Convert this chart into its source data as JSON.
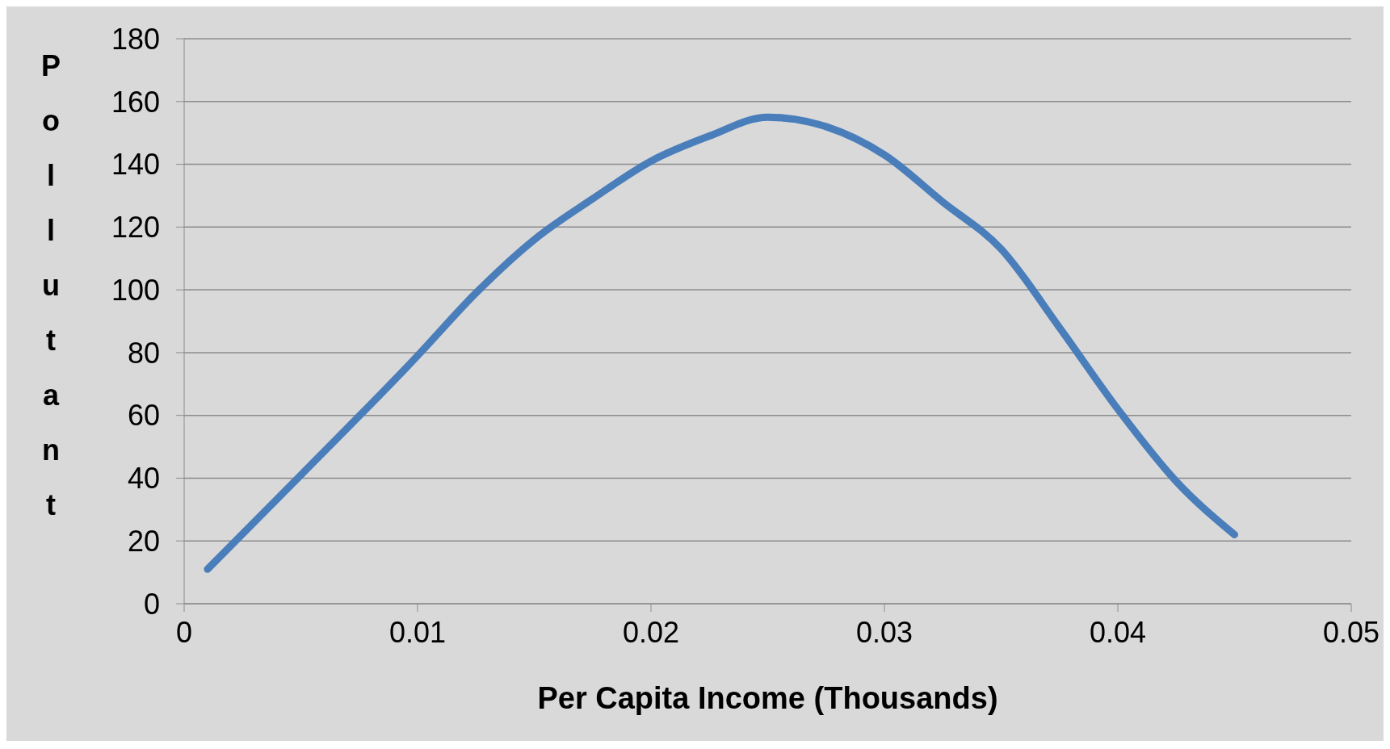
{
  "chart_data": {
    "type": "line",
    "xlabel": "Per Capita Income (Thousands)",
    "ylabel": "Pollutant",
    "series": [
      {
        "color": "#4a7ebb",
        "x": [
          0.001,
          0.005,
          0.01,
          0.0125,
          0.015,
          0.0175,
          0.02,
          0.0225,
          0.025,
          0.0275,
          0.03,
          0.0325,
          0.035,
          0.0375,
          0.04,
          0.0425,
          0.045
        ],
        "values": [
          11,
          41,
          79,
          99,
          116,
          129,
          141,
          149,
          155,
          152,
          143,
          128,
          113,
          88,
          62,
          39,
          22
        ]
      }
    ],
    "xlim": [
      0,
      0.05
    ],
    "xticks": [
      0,
      0.01,
      0.02,
      0.03,
      0.04,
      0.05
    ],
    "ylim": [
      0,
      180
    ],
    "yticks": [
      0,
      20,
      40,
      60,
      80,
      100,
      120,
      140,
      160,
      180
    ],
    "grid": "y",
    "marker": "none",
    "line_style": "solid"
  }
}
